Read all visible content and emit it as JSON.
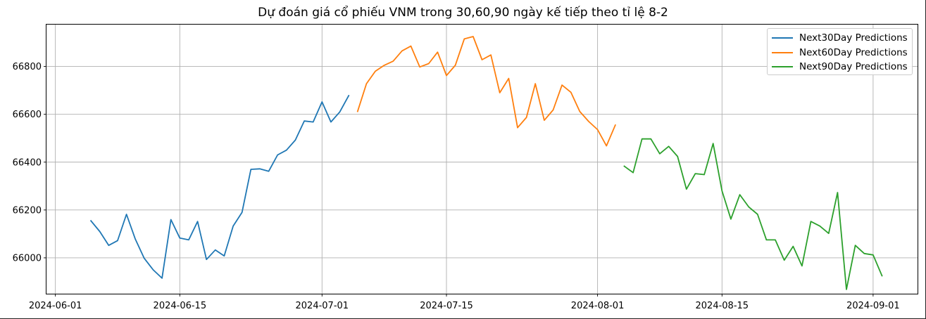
{
  "chart_data": {
    "type": "line",
    "title": "Dự đoán giá cổ phiếu VNM trong 30,60,90 ngày kế tiếp theo tỉ lệ 8-2",
    "xlabel": "",
    "ylabel": "",
    "x_ticks": [
      "2024-06-01",
      "2024-06-15",
      "2024-07-01",
      "2024-07-15",
      "2024-08-01",
      "2024-08-15",
      "2024-09-01"
    ],
    "y_ticks": [
      66000,
      66200,
      66400,
      66600,
      66800
    ],
    "xlim": [
      "2024-05-31",
      "2024-09-06"
    ],
    "ylim": [
      65850,
      66975
    ],
    "grid": true,
    "legend_position": "top-right",
    "series": [
      {
        "name": "Next30Day Predictions",
        "color": "#1f77b4",
        "x": [
          "2024-06-05",
          "2024-06-06",
          "2024-06-07",
          "2024-06-08",
          "2024-06-09",
          "2024-06-10",
          "2024-06-11",
          "2024-06-12",
          "2024-06-13",
          "2024-06-14",
          "2024-06-15",
          "2024-06-16",
          "2024-06-17",
          "2024-06-18",
          "2024-06-19",
          "2024-06-20",
          "2024-06-21",
          "2024-06-22",
          "2024-06-23",
          "2024-06-24",
          "2024-06-25",
          "2024-06-26",
          "2024-06-27",
          "2024-06-28",
          "2024-06-29",
          "2024-06-30",
          "2024-07-01",
          "2024-07-02",
          "2024-07-03",
          "2024-07-04"
        ],
        "y": [
          66155,
          66110,
          66052,
          66072,
          66182,
          66078,
          65998,
          65950,
          65915,
          66160,
          66083,
          66075,
          66152,
          65993,
          66033,
          66008,
          66133,
          66190,
          66370,
          66372,
          66362,
          66430,
          66450,
          66492,
          66572,
          66568,
          66652,
          66568,
          66610,
          66678
        ]
      },
      {
        "name": "Next60Day Predictions",
        "color": "#ff7f0e",
        "x": [
          "2024-07-05",
          "2024-07-06",
          "2024-07-07",
          "2024-07-08",
          "2024-07-09",
          "2024-07-10",
          "2024-07-11",
          "2024-07-12",
          "2024-07-13",
          "2024-07-14",
          "2024-07-15",
          "2024-07-16",
          "2024-07-17",
          "2024-07-18",
          "2024-07-19",
          "2024-07-20",
          "2024-07-21",
          "2024-07-22",
          "2024-07-23",
          "2024-07-24",
          "2024-07-25",
          "2024-07-26",
          "2024-07-27",
          "2024-07-28",
          "2024-07-29",
          "2024-07-30",
          "2024-07-31",
          "2024-08-01",
          "2024-08-02",
          "2024-08-03"
        ],
        "y": [
          66612,
          66728,
          66780,
          66805,
          66822,
          66865,
          66885,
          66798,
          66812,
          66860,
          66762,
          66805,
          66915,
          66925,
          66828,
          66848,
          66690,
          66750,
          66544,
          66587,
          66728,
          66575,
          66618,
          66722,
          66692,
          66612,
          66570,
          66536,
          66468,
          66555
        ]
      },
      {
        "name": "Next90Day Predictions",
        "color": "#2ca02c",
        "x": [
          "2024-08-04",
          "2024-08-05",
          "2024-08-06",
          "2024-08-07",
          "2024-08-08",
          "2024-08-09",
          "2024-08-10",
          "2024-08-11",
          "2024-08-12",
          "2024-08-13",
          "2024-08-14",
          "2024-08-15",
          "2024-08-16",
          "2024-08-17",
          "2024-08-18",
          "2024-08-19",
          "2024-08-20",
          "2024-08-21",
          "2024-08-22",
          "2024-08-23",
          "2024-08-24",
          "2024-08-25",
          "2024-08-26",
          "2024-08-27",
          "2024-08-28",
          "2024-08-29",
          "2024-08-30",
          "2024-08-31",
          "2024-09-01",
          "2024-09-02"
        ],
        "y": [
          66383,
          66356,
          66497,
          66497,
          66435,
          66466,
          66424,
          66287,
          66352,
          66348,
          66478,
          66280,
          66162,
          66264,
          66213,
          66182,
          66075,
          66075,
          65990,
          66048,
          65966,
          66152,
          66133,
          66102,
          66273,
          65868,
          66052,
          66018,
          66012,
          65925
        ]
      }
    ]
  }
}
